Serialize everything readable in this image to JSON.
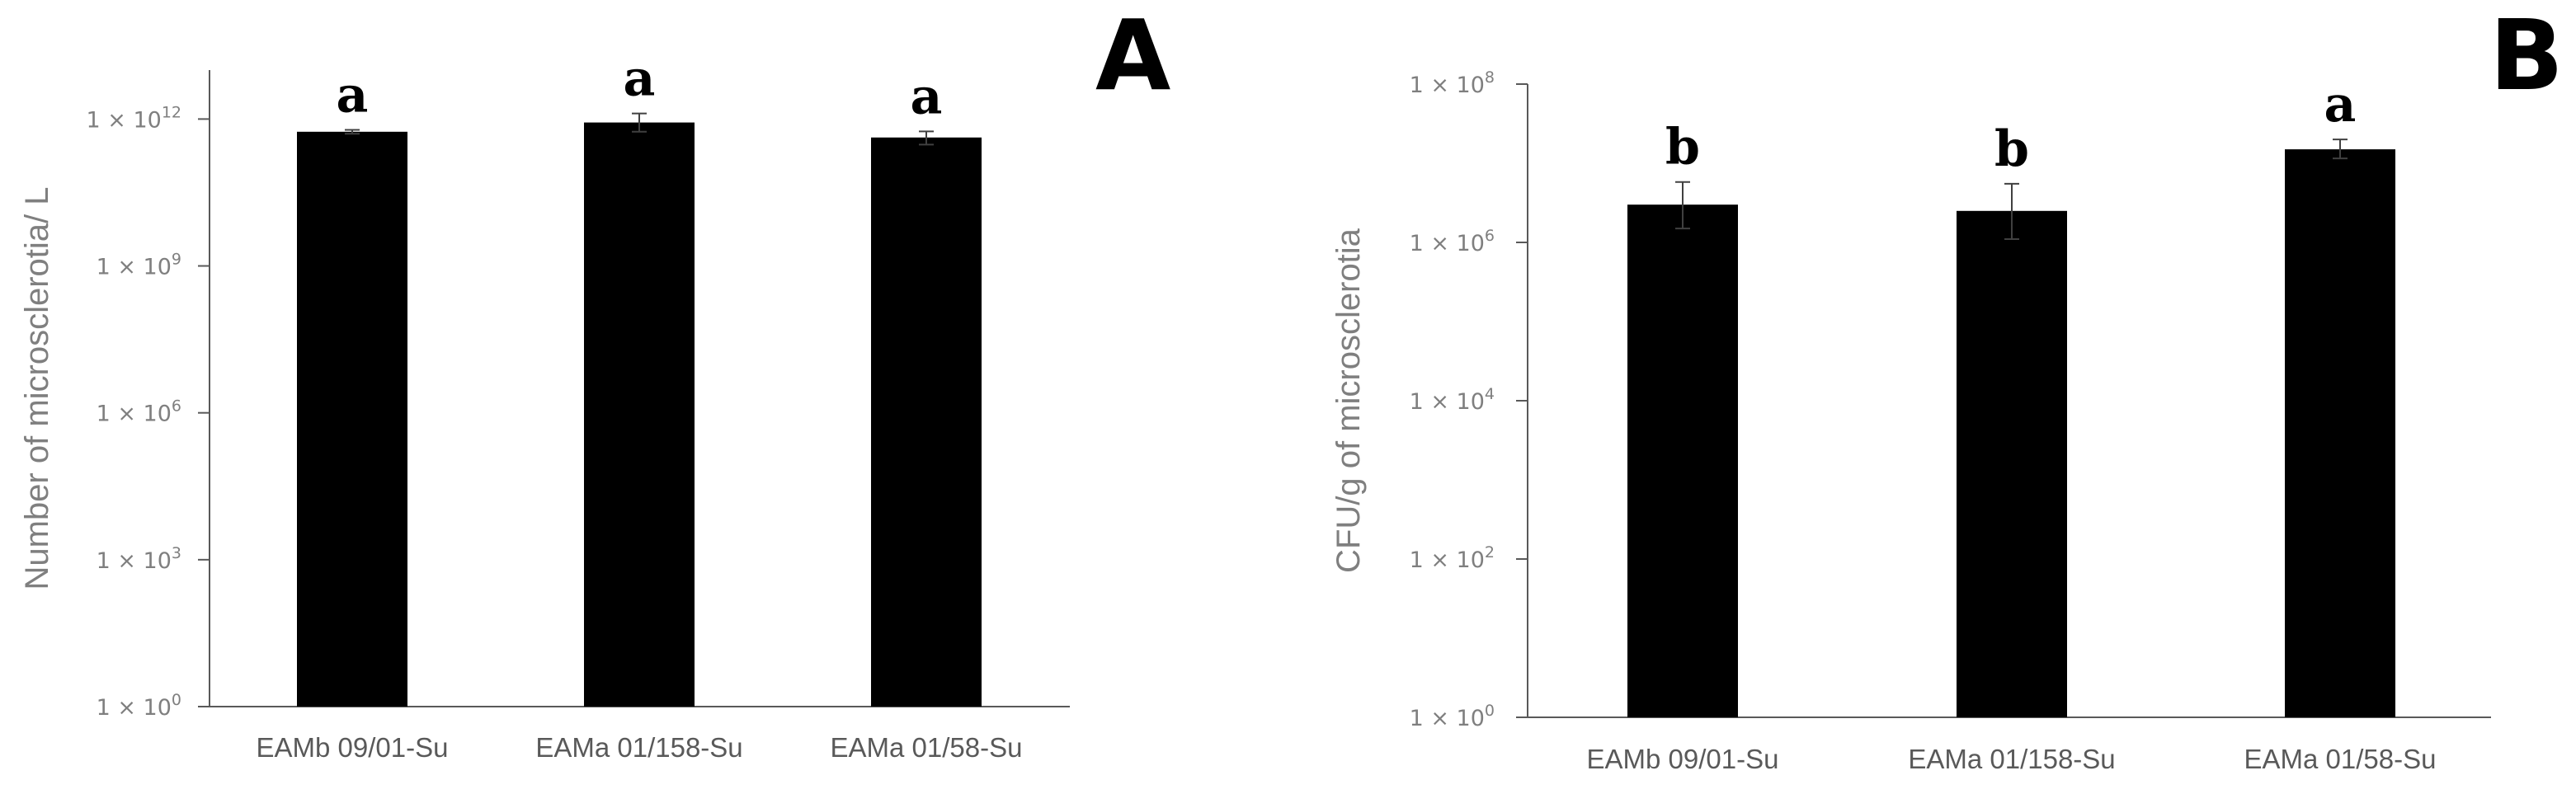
{
  "chart_data": [
    {
      "panel": "A",
      "type": "bar",
      "title": "",
      "xlabel": "",
      "ylabel": "Number of microsclerotia/ L",
      "yscale": "log",
      "ylim": [
        1,
        10000000000000.0
      ],
      "yticks": [
        {
          "value": 1,
          "base": "1 × 10",
          "exp": "0"
        },
        {
          "value": 1000.0,
          "base": "1 × 10",
          "exp": "3"
        },
        {
          "value": 1000000.0,
          "base": "1 × 10",
          "exp": "6"
        },
        {
          "value": 1000000000.0,
          "base": "1 × 10",
          "exp": "9"
        },
        {
          "value": 1000000000000.0,
          "base": "1 × 10",
          "exp": "12"
        }
      ],
      "categories": [
        "EAMb 09/01-Su",
        "EAMa 01/158-Su",
        "EAMa 01/58-Su"
      ],
      "values": [
        550000000000.0,
        850000000000.0,
        420000000000.0
      ],
      "error_low": [
        500000000000.0,
        550000000000.0,
        300000000000.0
      ],
      "error_high": [
        600000000000.0,
        1300000000000.0,
        560000000000.0
      ],
      "significance_letters": [
        "a",
        "a",
        "a"
      ],
      "grid": false,
      "legend": "none",
      "bar_color": "#000000"
    },
    {
      "panel": "B",
      "type": "bar",
      "title": "",
      "xlabel": "",
      "ylabel": "CFU/g  of microsclerotia",
      "yscale": "log",
      "ylim": [
        1,
        100000000.0
      ],
      "yticks": [
        {
          "value": 1,
          "base": "1 × 10",
          "exp": "0"
        },
        {
          "value": 100.0,
          "base": "1 × 10",
          "exp": "2"
        },
        {
          "value": 10000.0,
          "base": "1 × 10",
          "exp": "4"
        },
        {
          "value": 1000000.0,
          "base": "1 × 10",
          "exp": "6"
        },
        {
          "value": 100000000.0,
          "base": "1 × 10",
          "exp": "8"
        }
      ],
      "categories": [
        "EAMb 09/01-Su",
        "EAMa 01/158-Su",
        "EAMa 01/58-Su"
      ],
      "values": [
        3000000.0,
        2500000.0,
        15000000.0
      ],
      "error_low": [
        1500000.0,
        1100000.0,
        11500000.0
      ],
      "error_high": [
        5800000.0,
        5500000.0,
        20000000.0
      ],
      "significance_letters": [
        "b",
        "b",
        "a"
      ],
      "grid": false,
      "legend": "none",
      "bar_color": "#000000"
    }
  ]
}
